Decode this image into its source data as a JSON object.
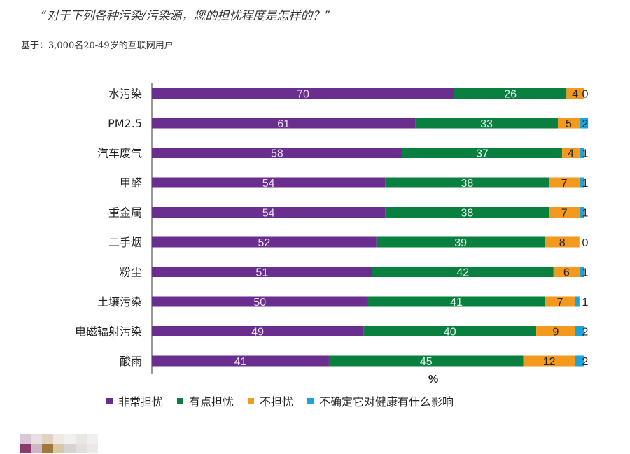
{
  "title": "“对于下列各种污染/污染源，您的担忧程度是怎样的？”",
  "subtitle": "基于：3,000名20-49岁的互联网用户",
  "unit_label": "%",
  "chart_data": {
    "type": "bar",
    "orientation": "horizontal",
    "stacked": true,
    "categories": [
      "水污染",
      "PM2.5",
      "汽车废气",
      "甲醛",
      "重金属",
      "二手烟",
      "粉尘",
      "土壤污染",
      "电磁辐射污染",
      "酸雨"
    ],
    "series": [
      {
        "name": "非常担忧",
        "color": "#6a2f8e",
        "label_color": "#e8e0f0",
        "values": [
          70,
          61,
          58,
          54,
          54,
          52,
          51,
          50,
          49,
          41
        ]
      },
      {
        "name": "有点担忧",
        "color": "#0a8040",
        "label_color": "#e3f3e8",
        "values": [
          26,
          33,
          37,
          38,
          38,
          39,
          42,
          41,
          40,
          45
        ]
      },
      {
        "name": "不担忧",
        "color": "#f39a1e",
        "label_color": "#222222",
        "values": [
          4,
          5,
          4,
          7,
          7,
          8,
          6,
          7,
          9,
          12
        ]
      },
      {
        "name": "不确定它对健康有什么影响",
        "color": "#1aa3dc",
        "label_color": "#222222",
        "values": [
          0,
          2,
          1,
          1,
          1,
          0,
          1,
          1,
          2,
          2
        ]
      }
    ],
    "xlim": [
      0,
      100
    ],
    "xlabel": "%",
    "grid": false,
    "legend": "bottom"
  },
  "icons": {
    "blurred-logo": "pixelated-logo-icon"
  }
}
